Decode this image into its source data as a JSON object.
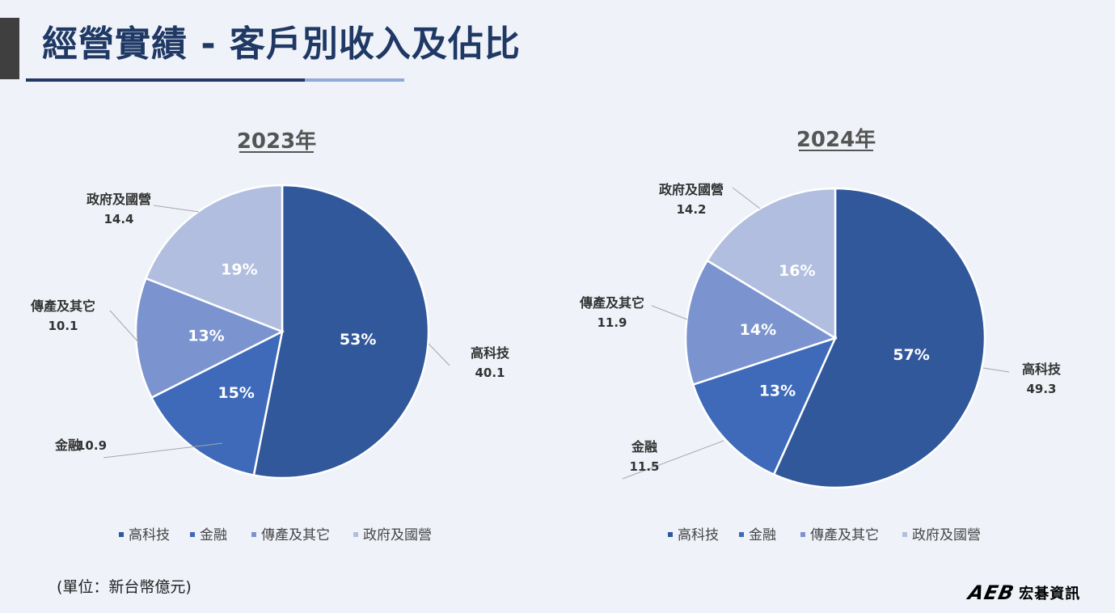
{
  "page": {
    "title": "經營實績 - 客戶別收入及佔比",
    "unit_note": "(單位：新台幣億元)",
    "logo_mark": "AEB",
    "logo_text": "宏碁資訊"
  },
  "chart_data": [
    {
      "type": "pie",
      "title": "2023年",
      "categories": [
        "高科技",
        "金融",
        "傳產及其它",
        "政府及國營"
      ],
      "values": [
        40.1,
        10.9,
        10.1,
        14.4
      ],
      "value_labels": [
        "40.1",
        "10.9",
        "10.1",
        "14.4"
      ],
      "percent_labels": [
        "53%",
        "15%",
        "13%",
        "19%"
      ],
      "colors": [
        "#31589a",
        "#3e6ab9",
        "#7b94cf",
        "#b2bedf"
      ],
      "legend": "bottom"
    },
    {
      "type": "pie",
      "title": "2024年",
      "categories": [
        "高科技",
        "金融",
        "傳產及其它",
        "政府及國營"
      ],
      "values": [
        49.3,
        11.5,
        11.9,
        14.2
      ],
      "value_labels": [
        "49.3",
        "11.5",
        "11.9",
        "14.2"
      ],
      "percent_labels": [
        "57%",
        "13%",
        "14%",
        "16%"
      ],
      "colors": [
        "#31589a",
        "#3e6ab9",
        "#7b94cf",
        "#b2bedf"
      ],
      "legend": "bottom"
    }
  ]
}
